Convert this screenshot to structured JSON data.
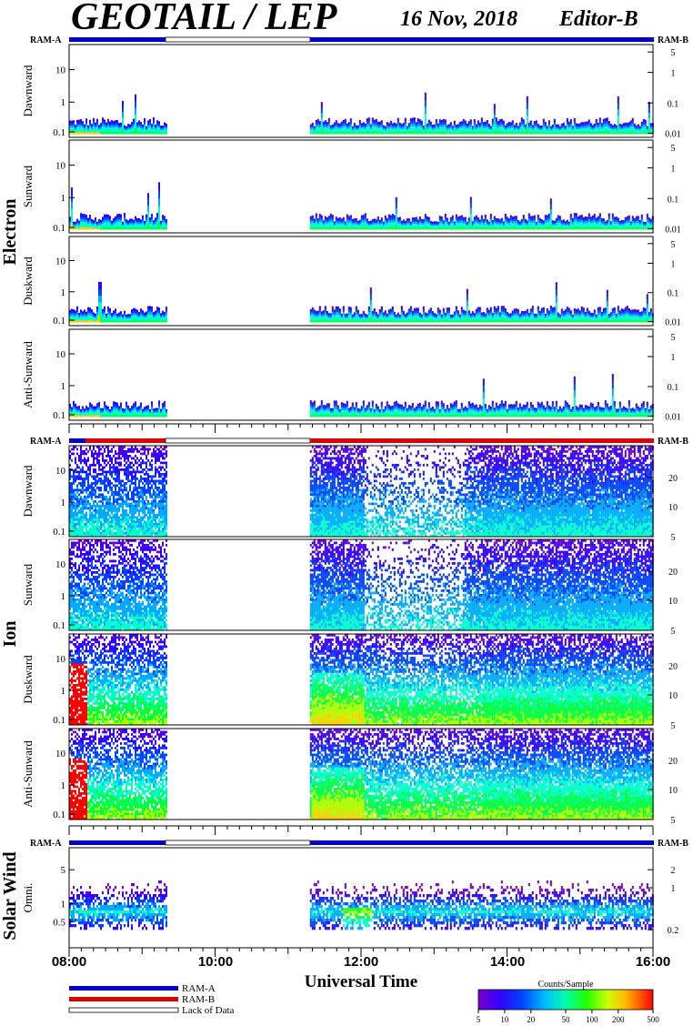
{
  "header": {
    "title": "GEOTAIL / LEP",
    "date": "16 Nov, 2018",
    "editor": "Editor-B"
  },
  "groups": {
    "electron": "Electron",
    "ion": "Ion",
    "solar_wind": "Solar Wind"
  },
  "ram_labels": {
    "a": "RAM-A",
    "b": "RAM-B"
  },
  "panels": {
    "electron": [
      "Dawnward",
      "Sunward",
      "Duskward",
      "Anti-Sunward"
    ],
    "ion": [
      "Dawnward",
      "Sunward",
      "Duskward",
      "Anti-Sunward"
    ],
    "solar_wind": [
      "Omni."
    ]
  },
  "legend": {
    "ram_a": "RAM-A",
    "ram_b": "RAM-B",
    "lack": "Lack of Data"
  },
  "colorbar": {
    "title": "Counts/Sample",
    "ticks": [
      "5",
      "10",
      "20",
      "50",
      "100",
      "200",
      "500"
    ]
  },
  "colors": {
    "ram_a": "#0000cc",
    "ram_b": "#dd0000",
    "spectrogram_scale": [
      "#6600cc",
      "#2222ff",
      "#00aaff",
      "#00ffcc",
      "#00ff00",
      "#ccff00",
      "#ffcc00",
      "#ff6600",
      "#ff0000"
    ]
  },
  "chart_data": {
    "type": "heatmap",
    "title": "GEOTAIL / LEP",
    "xlabel": "Universal Time",
    "x_ticks": [
      "08:00",
      "10:00",
      "12:00",
      "14:00",
      "16:00"
    ],
    "x_range": [
      "08:00",
      "16:00"
    ],
    "data_gaps": [
      [
        "09:20",
        "11:18"
      ]
    ],
    "ram_status": {
      "electron": [
        {
          "from": "08:00",
          "to": "09:20",
          "mode": "RAM-A"
        },
        {
          "from": "09:20",
          "to": "11:18",
          "mode": "Lack of Data"
        },
        {
          "from": "11:18",
          "to": "16:00",
          "mode": "RAM-A"
        }
      ],
      "ion": [
        {
          "from": "08:00",
          "to": "08:15",
          "mode": "RAM-A"
        },
        {
          "from": "08:15",
          "to": "09:20",
          "mode": "RAM-B"
        },
        {
          "from": "09:20",
          "to": "11:18",
          "mode": "Lack of Data"
        },
        {
          "from": "11:18",
          "to": "16:00",
          "mode": "RAM-B"
        }
      ],
      "solar_wind": [
        {
          "from": "08:00",
          "to": "09:20",
          "mode": "RAM-A"
        },
        {
          "from": "09:20",
          "to": "11:18",
          "mode": "Lack of Data"
        },
        {
          "from": "11:18",
          "to": "16:00",
          "mode": "RAM-A"
        }
      ]
    },
    "electron_panels": {
      "left_axis": {
        "scale": "log",
        "ticks": [
          "0.1",
          "1",
          "10"
        ]
      },
      "right_axis": {
        "scale": "log",
        "ticks": [
          "0.01",
          "0.1",
          "1",
          "5"
        ]
      }
    },
    "ion_panels": {
      "left_axis": {
        "scale": "log",
        "ticks": [
          "0.1",
          "1",
          "10"
        ]
      },
      "right_axis": {
        "ticks": [
          "5",
          "10",
          "20"
        ]
      }
    },
    "solar_wind_panel": {
      "left_axis": {
        "ticks": [
          "0.5",
          "1",
          "5"
        ]
      },
      "right_axis": {
        "ticks": [
          "0.2",
          "1",
          "2"
        ]
      }
    },
    "colorbar": {
      "label": "Counts/Sample",
      "scale": "log",
      "range": [
        5,
        500
      ],
      "ticks": [
        5,
        10,
        20,
        50,
        100,
        200,
        500
      ]
    }
  }
}
